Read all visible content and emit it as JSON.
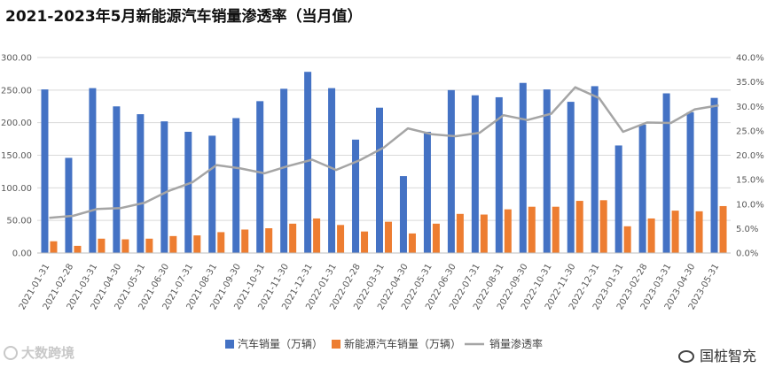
{
  "title": "2021-2023年5月新能源汽车销量渗透率（当月值）",
  "watermark_left": "大数跨境",
  "watermark_right": "国桩智充",
  "colors": {
    "vehicle": "#4472C4",
    "nev": "#ED7D31",
    "rate": "#A5A5A5",
    "grid": "#D9D9D9",
    "axis_text": "#595959"
  },
  "chart_data": {
    "type": "bar",
    "title": "2021-2023年5月新能源汽车销量渗透率（当月值）",
    "categories": [
      "2021-01-31",
      "2021-02-28",
      "2021-03-31",
      "2021-04-30",
      "2021-05-31",
      "2021-06-30",
      "2021-07-31",
      "2021-08-31",
      "2021-09-30",
      "2021-10-31",
      "2021-11-30",
      "2021-12-31",
      "2022-01-31",
      "2022-02-28",
      "2022-03-31",
      "2022-04-30",
      "2022-05-31",
      "2022-06-30",
      "2022-07-31",
      "2022-08-31",
      "2022-09-30",
      "2022-10-31",
      "2022-11-30",
      "2022-12-31",
      "2023-01-31",
      "2023-02-28",
      "2023-03-31",
      "2023-04-30",
      "2023-05-31"
    ],
    "y_left": {
      "ticks": [
        "0.00",
        "50.00",
        "100.00",
        "150.00",
        "200.00",
        "250.00",
        "300.00"
      ],
      "min": 0,
      "max": 300
    },
    "y_right": {
      "ticks": [
        "0.0%",
        "5.0%",
        "10.0%",
        "15.0%",
        "20.0%",
        "25.0%",
        "30.0%",
        "35.0%",
        "40.0%"
      ],
      "min": 0,
      "max": 40
    },
    "grid": true,
    "legend_position": "bottom",
    "series": [
      {
        "name": "汽车销量（万辆）",
        "type": "bar",
        "axis": "left",
        "values": [
          251,
          146,
          253,
          225,
          213,
          202,
          186,
          180,
          207,
          233,
          252,
          278,
          253,
          174,
          223,
          118,
          186,
          250,
          242,
          239,
          261,
          251,
          232,
          256,
          165,
          197,
          245,
          216,
          238
        ]
      },
      {
        "name": "新能源汽车销量（万辆）",
        "type": "bar",
        "axis": "left",
        "values": [
          18,
          11,
          22,
          21,
          22,
          26,
          27,
          32,
          36,
          38,
          45,
          53,
          43,
          33,
          48,
          30,
          45,
          60,
          59,
          67,
          71,
          71,
          80,
          81,
          41,
          53,
          65,
          64,
          72
        ]
      },
      {
        "name": "销量渗透率",
        "type": "line",
        "axis": "right",
        "values": [
          7.2,
          7.6,
          9.0,
          9.2,
          10.3,
          12.7,
          14.5,
          18.0,
          17.3,
          16.3,
          17.8,
          19.1,
          17.0,
          19.0,
          21.6,
          25.5,
          24.3,
          23.9,
          24.6,
          28.2,
          27.2,
          28.5,
          33.9,
          31.7,
          24.8,
          26.7,
          26.6,
          29.4,
          30.2
        ]
      }
    ]
  }
}
